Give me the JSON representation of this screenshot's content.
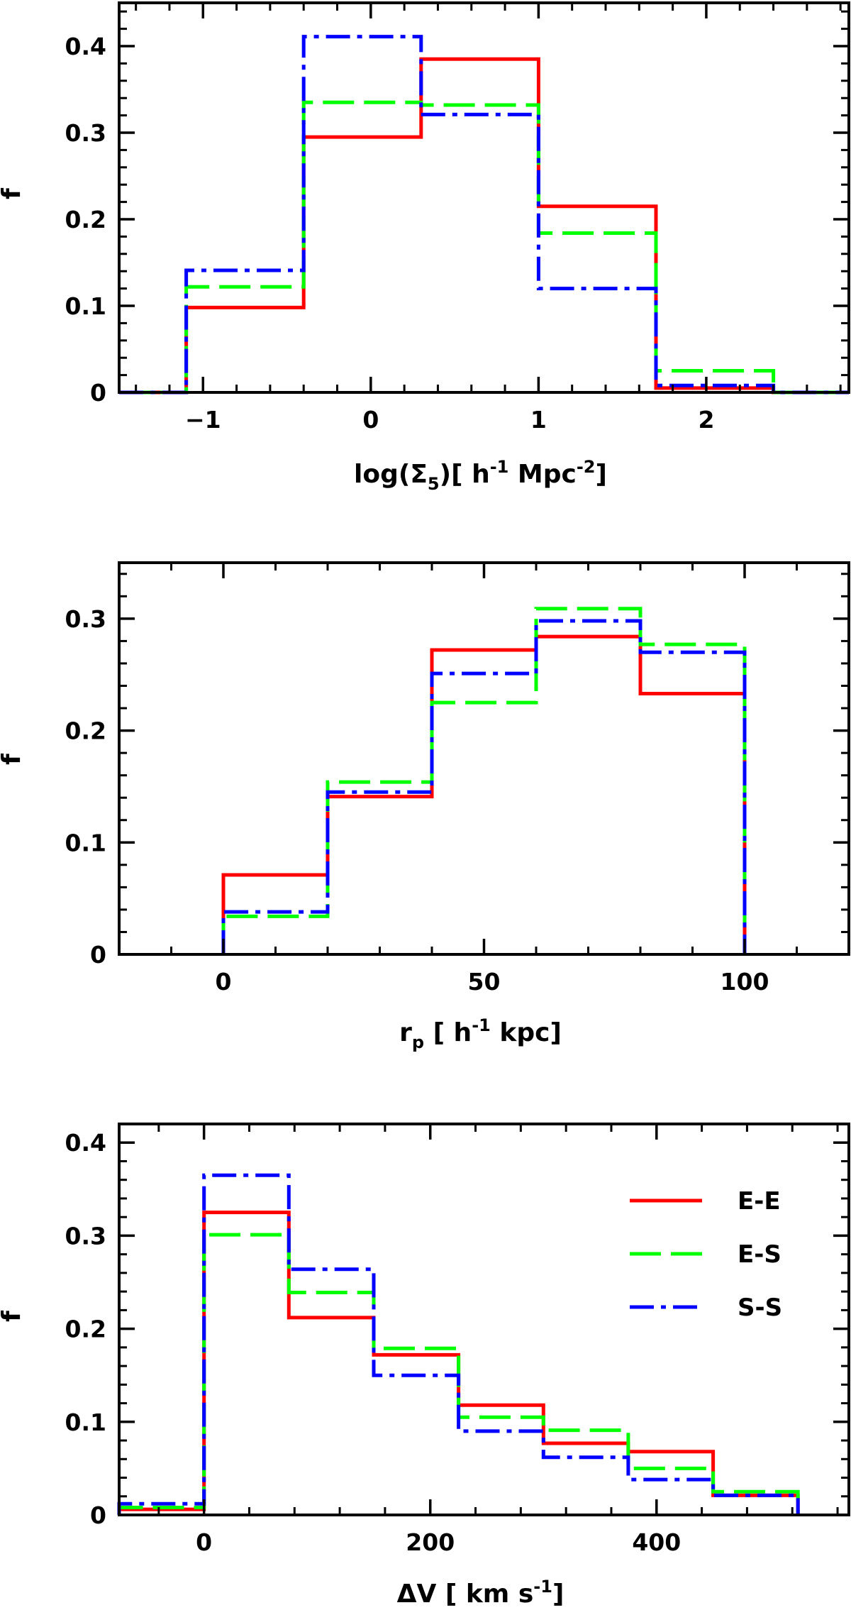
{
  "chart_data": [
    {
      "type": "histogram",
      "title": "",
      "xlabel": "log(Σ5)[ h-1 Mpc-2]",
      "xlabel_parts": [
        "log(Σ",
        "5",
        ")[ h",
        "-1",
        " Mpc",
        "-2",
        "]"
      ],
      "ylabel": "f",
      "xlim": [
        -1.5,
        2.85
      ],
      "ylim": [
        0,
        0.45
      ],
      "xticks": [
        -1,
        0,
        1,
        2
      ],
      "xtick_labels": [
        "−1",
        "0",
        "1",
        "2"
      ],
      "yticks": [
        0,
        0.1,
        0.2,
        0.3,
        0.4
      ],
      "ytick_labels": [
        "0",
        "0.1",
        "0.2",
        "0.3",
        "0.4"
      ],
      "series": [
        {
          "name": "E-E",
          "color": "#ff0000",
          "dash": "solid",
          "edges": [
            -1.5,
            -1.1,
            -0.4,
            0.3,
            1.0,
            1.7,
            2.4,
            2.85
          ],
          "values": [
            0,
            0.098,
            0.295,
            0.385,
            0.215,
            0.005,
            0
          ]
        },
        {
          "name": "E-S",
          "color": "#00ff00",
          "dash": "dashed",
          "edges": [
            -1.5,
            -1.1,
            -0.4,
            0.3,
            1.0,
            1.7,
            2.4,
            2.85
          ],
          "values": [
            0,
            0.122,
            0.335,
            0.332,
            0.184,
            0.025,
            0
          ]
        },
        {
          "name": "S-S",
          "color": "#0000ff",
          "dash": "dashdot",
          "edges": [
            -1.5,
            -1.1,
            -0.4,
            0.3,
            1.0,
            1.7,
            2.4,
            2.85
          ],
          "values": [
            0,
            0.141,
            0.411,
            0.321,
            0.12,
            0.008,
            0
          ]
        }
      ]
    },
    {
      "type": "histogram",
      "title": "",
      "xlabel": "rp [ h-1 kpc]",
      "xlabel_parts": [
        "r",
        "p",
        " [ h",
        "-1",
        " kpc]"
      ],
      "ylabel": "f",
      "xlim": [
        -20,
        120
      ],
      "ylim": [
        0,
        0.35
      ],
      "xticks": [
        0,
        50,
        100
      ],
      "xtick_labels": [
        "0",
        "50",
        "100"
      ],
      "yticks": [
        0,
        0.1,
        0.2,
        0.3
      ],
      "ytick_labels": [
        "0",
        "0.1",
        "0.2",
        "0.3"
      ],
      "series": [
        {
          "name": "E-E",
          "color": "#ff0000",
          "dash": "solid",
          "edges": [
            0,
            20,
            40,
            60,
            80,
            100
          ],
          "values": [
            0.071,
            0.141,
            0.272,
            0.284,
            0.233
          ]
        },
        {
          "name": "E-S",
          "color": "#00ff00",
          "dash": "dashed",
          "edges": [
            0,
            20,
            40,
            60,
            80,
            100
          ],
          "values": [
            0.034,
            0.154,
            0.225,
            0.309,
            0.277
          ]
        },
        {
          "name": "S-S",
          "color": "#0000ff",
          "dash": "dashdot",
          "edges": [
            0,
            20,
            40,
            60,
            80,
            100
          ],
          "values": [
            0.038,
            0.145,
            0.251,
            0.298,
            0.27
          ]
        }
      ]
    },
    {
      "type": "histogram",
      "title": "",
      "xlabel": "ΔV [ km s-1]",
      "xlabel_parts": [
        "ΔV [ km  s",
        "-1",
        "]"
      ],
      "ylabel": "f",
      "xlim": [
        -75,
        570
      ],
      "ylim": [
        0,
        0.42
      ],
      "xticks": [
        0,
        200,
        400
      ],
      "xtick_labels": [
        "0",
        "200",
        "400"
      ],
      "yticks": [
        0,
        0.1,
        0.2,
        0.3,
        0.4
      ],
      "ytick_labels": [
        "0",
        "0.1",
        "0.2",
        "0.3",
        "0.4"
      ],
      "legend": {
        "position": "top-right",
        "entries": [
          "E-E",
          "E-S",
          "S-S"
        ]
      },
      "series": [
        {
          "name": "E-E",
          "color": "#ff0000",
          "dash": "solid",
          "edges": [
            -75,
            0,
            75,
            150,
            225,
            300,
            375,
            450,
            525
          ],
          "values": [
            0.006,
            0.325,
            0.212,
            0.172,
            0.118,
            0.077,
            0.068,
            0.021
          ]
        },
        {
          "name": "E-S",
          "color": "#00ff00",
          "dash": "dashed",
          "edges": [
            -75,
            0,
            75,
            150,
            225,
            300,
            375,
            450,
            525
          ],
          "values": [
            0.008,
            0.301,
            0.239,
            0.179,
            0.105,
            0.091,
            0.05,
            0.025
          ]
        },
        {
          "name": "S-S",
          "color": "#0000ff",
          "dash": "dashdot",
          "edges": [
            -75,
            0,
            75,
            150,
            225,
            300,
            375,
            450,
            525
          ],
          "values": [
            0.012,
            0.365,
            0.264,
            0.15,
            0.09,
            0.062,
            0.038,
            0.021
          ]
        }
      ]
    }
  ]
}
